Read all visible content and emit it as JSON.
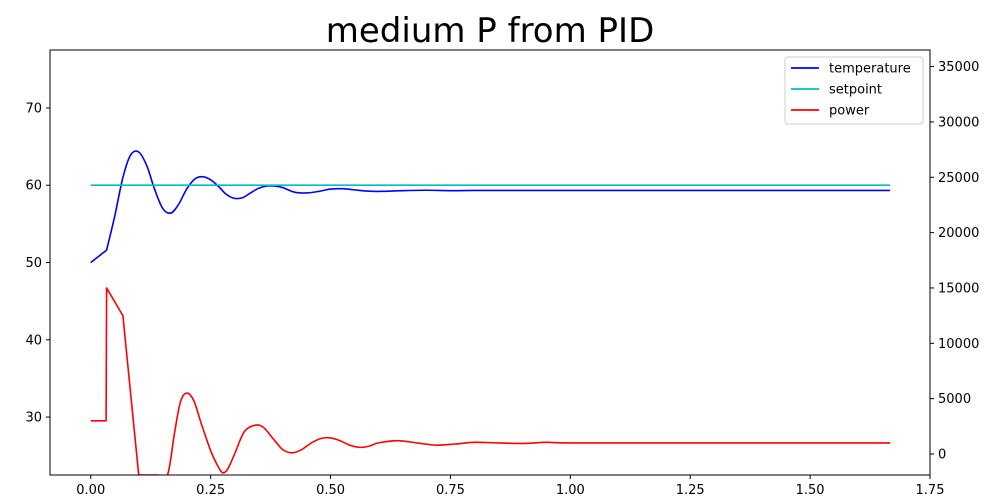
{
  "chart_data": {
    "type": "line",
    "title": "medium P from PID",
    "xlabel": "",
    "ylabel_left": "",
    "ylabel_right": "",
    "xlim": [
      -0.085,
      1.75
    ],
    "ylim_left": [
      22.5,
      77.5
    ],
    "ylim_right": [
      -1900,
      36500
    ],
    "x_ticks": [
      0.0,
      0.25,
      0.5,
      0.75,
      1.0,
      1.25,
      1.5,
      1.75
    ],
    "x_tick_labels": [
      "0.00",
      "0.25",
      "0.50",
      "0.75",
      "1.00",
      "1.25",
      "1.50",
      "1.75"
    ],
    "y_left_ticks": [
      30,
      40,
      50,
      60,
      70
    ],
    "y_left_tick_labels": [
      "30",
      "40",
      "50",
      "60",
      "70"
    ],
    "y_right_ticks": [
      0,
      5000,
      10000,
      15000,
      20000,
      25000,
      30000,
      35000
    ],
    "y_right_tick_labels": [
      "0",
      "5000",
      "10000",
      "15000",
      "20000",
      "25000",
      "30000",
      "35000"
    ],
    "grid": false,
    "legend_position": "top-right",
    "series": [
      {
        "name": "temperature",
        "axis": "left",
        "color": "#0000ff",
        "x": [
          0.0,
          0.033,
          0.05,
          0.067,
          0.083,
          0.1,
          0.117,
          0.133,
          0.15,
          0.167,
          0.183,
          0.2,
          0.217,
          0.233,
          0.25,
          0.267,
          0.283,
          0.3,
          0.317,
          0.333,
          0.35,
          0.367,
          0.383,
          0.4,
          0.425,
          0.45,
          0.475,
          0.5,
          0.525,
          0.55,
          0.575,
          0.6,
          0.65,
          0.7,
          0.75,
          0.8,
          0.85,
          0.9,
          1.0,
          1.25,
          1.5,
          1.667
        ],
        "y": [
          50.0,
          51.6,
          56.0,
          61.0,
          63.9,
          64.3,
          62.5,
          59.5,
          57.0,
          56.4,
          57.5,
          59.5,
          60.8,
          61.1,
          60.7,
          59.8,
          58.8,
          58.3,
          58.4,
          59.0,
          59.6,
          59.9,
          59.9,
          59.7,
          59.1,
          59.0,
          59.2,
          59.5,
          59.55,
          59.4,
          59.25,
          59.2,
          59.3,
          59.35,
          59.3,
          59.32,
          59.32,
          59.32,
          59.32,
          59.32,
          59.32,
          59.32
        ]
      },
      {
        "name": "setpoint",
        "axis": "left",
        "color": "#00bfbf",
        "x": [
          0.0,
          1.667
        ],
        "y": [
          60.0,
          60.0
        ]
      },
      {
        "name": "power",
        "axis": "right",
        "color": "#ff0000",
        "x": [
          0.0,
          0.032,
          0.033,
          0.067,
          0.1,
          0.14,
          0.16,
          0.175,
          0.187,
          0.2,
          0.215,
          0.23,
          0.25,
          0.265,
          0.275,
          0.285,
          0.3,
          0.32,
          0.343,
          0.36,
          0.38,
          0.4,
          0.42,
          0.44,
          0.46,
          0.48,
          0.5,
          0.52,
          0.54,
          0.56,
          0.58,
          0.6,
          0.64,
          0.68,
          0.72,
          0.76,
          0.8,
          0.85,
          0.9,
          0.95,
          1.0,
          1.25,
          1.5,
          1.667
        ],
        "y": [
          3000,
          3000,
          15000,
          12500,
          -1900,
          -1900,
          -1900,
          2000,
          4700,
          5500,
          4800,
          2800,
          300,
          -1100,
          -1700,
          -1400,
          0,
          2000,
          2600,
          2400,
          1400,
          400,
          100,
          400,
          1000,
          1400,
          1450,
          1200,
          800,
          600,
          700,
          1000,
          1200,
          1000,
          800,
          900,
          1050,
          1000,
          950,
          1050,
          1000,
          1000,
          1000,
          1000
        ]
      }
    ]
  }
}
